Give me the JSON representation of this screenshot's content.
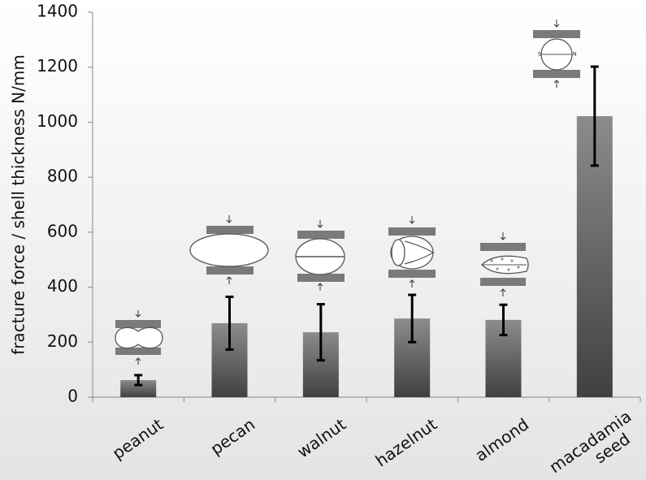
{
  "chart_data": {
    "type": "bar",
    "y_label": "fracture force / shell thickness N/mm",
    "categories": [
      "peanut",
      "pecan",
      "walnut",
      "hazelnut",
      "almond",
      "macadamia seed"
    ],
    "values": [
      62,
      269,
      236,
      286,
      281,
      1022
    ],
    "errors": [
      18,
      96,
      102,
      86,
      55,
      180
    ],
    "color": "#5a5a5a",
    "ylim": [
      0,
      1400
    ],
    "yticks": [
      0,
      200,
      400,
      600,
      800,
      1000,
      1200,
      1400
    ],
    "grid": false
  }
}
